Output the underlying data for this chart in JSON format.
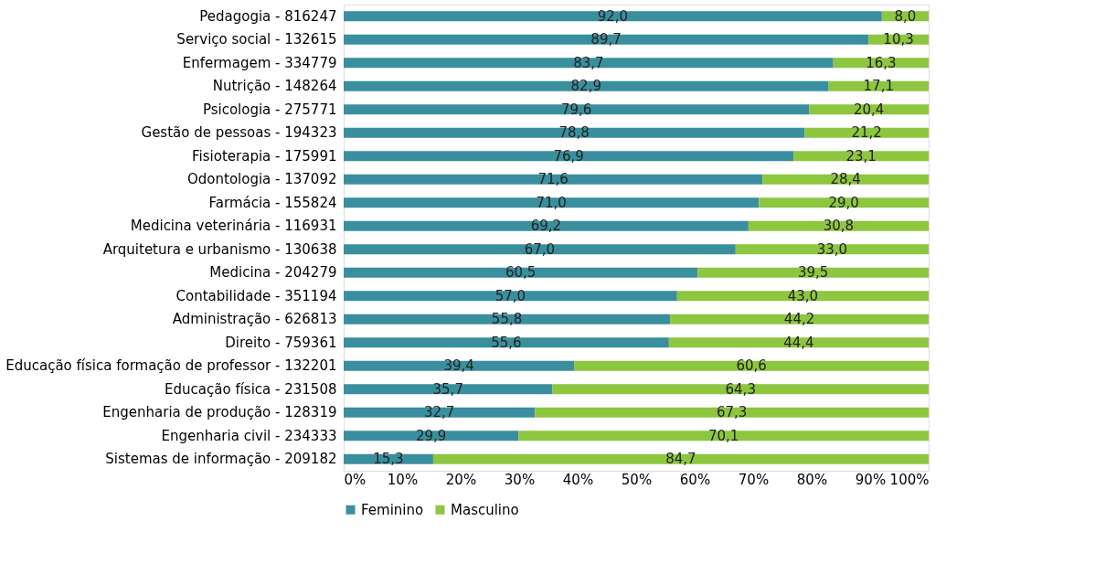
{
  "chart_data": {
    "type": "bar",
    "orientation": "horizontal",
    "stacked": true,
    "categories": [
      "Pedagogia - 816247",
      "Serviço social - 132615",
      "Enfermagem - 334779",
      "Nutrição - 148264",
      "Psicologia - 275771",
      "Gestão de pessoas - 194323",
      "Fisioterapia - 175991",
      "Odontologia - 137092",
      "Farmácia - 155824",
      "Medicina veterinária - 116931",
      "Arquitetura e urbanismo - 130638",
      "Medicina - 204279",
      "Contabilidade - 351194",
      "Administração - 626813",
      "Direito - 759361",
      "Educação física formação de professor - 132201",
      "Educação física - 231508",
      "Engenharia de produção - 128319",
      "Engenharia civil - 234333",
      "Sistemas de informação - 209182"
    ],
    "series": [
      {
        "name": "Feminino",
        "color": "#3a8f9e",
        "values": [
          92.0,
          89.7,
          83.7,
          82.9,
          79.6,
          78.8,
          76.9,
          71.6,
          71.0,
          69.2,
          67.0,
          60.5,
          57.0,
          55.8,
          55.6,
          39.4,
          35.7,
          32.7,
          29.9,
          15.3
        ],
        "value_labels": [
          "92,0",
          "89,7",
          "83,7",
          "82,9",
          "79,6",
          "78,8",
          "76,9",
          "71,6",
          "71,0",
          "69,2",
          "67,0",
          "60,5",
          "57,0",
          "55,8",
          "55,6",
          "39,4",
          "35,7",
          "32,7",
          "29,9",
          "15,3"
        ]
      },
      {
        "name": "Masculino",
        "color": "#8dc63f",
        "values": [
          8.0,
          10.3,
          16.3,
          17.1,
          20.4,
          21.2,
          23.1,
          28.4,
          29.0,
          30.8,
          33.0,
          39.5,
          43.0,
          44.2,
          44.4,
          60.6,
          64.3,
          67.3,
          70.1,
          84.7
        ],
        "value_labels": [
          "8,0",
          "10,3",
          "16,3",
          "17,1",
          "20,4",
          "21,2",
          "23,1",
          "28,4",
          "29,0",
          "30,8",
          "33,0",
          "39,5",
          "43,0",
          "44,2",
          "44,4",
          "60,6",
          "64,3",
          "67,3",
          "70,1",
          "84,7"
        ]
      }
    ],
    "xlim": [
      0,
      100
    ],
    "xticks": [
      {
        "value": 0,
        "label": "0%"
      },
      {
        "value": 10,
        "label": "10%"
      },
      {
        "value": 20,
        "label": "20%"
      },
      {
        "value": 30,
        "label": "30%"
      },
      {
        "value": 40,
        "label": "40%"
      },
      {
        "value": 50,
        "label": "50%"
      },
      {
        "value": 60,
        "label": "60%"
      },
      {
        "value": 70,
        "label": "70%"
      },
      {
        "value": 80,
        "label": "80%"
      },
      {
        "value": 90,
        "label": "90%"
      },
      {
        "value": 100,
        "label": "100%"
      }
    ],
    "grid": false,
    "legend": "bottom"
  }
}
